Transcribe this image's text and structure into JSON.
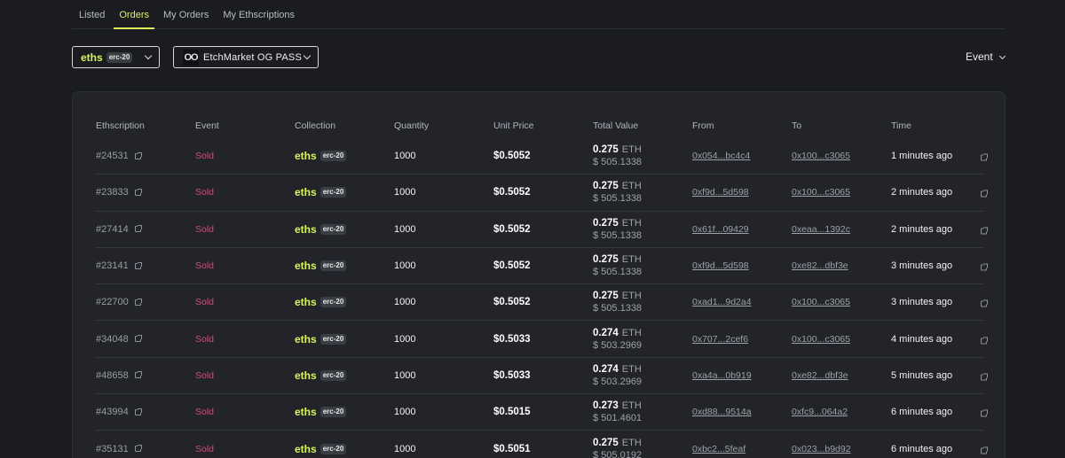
{
  "tabs": [
    "Listed",
    "Orders",
    "My Orders",
    "My Ethscriptions"
  ],
  "filters": {
    "token_name": "eths",
    "token_badge": "erc-20",
    "collection_logo": "OO",
    "collection_name": "EtchMarket OG PASS",
    "event_label": "Event"
  },
  "table": {
    "headers": {
      "ethscription": "Ethscription",
      "event": "Event",
      "collection": "Collection",
      "quantity": "Quantity",
      "unit_price": "Unit Price",
      "total_value": "Total Value",
      "from": "From",
      "to": "To",
      "time": "Time"
    },
    "rows": [
      {
        "id": "#24531",
        "event": "Sold",
        "coll": "eths",
        "badge": "erc-20",
        "qty": "1000",
        "price": "$0.5052",
        "total_eth": "0.275",
        "unit": "ETH",
        "total_usd": "$ 505.1338",
        "from": "0x054...bc4c4",
        "to": "0x100...c3065",
        "time": "1 minutes ago"
      },
      {
        "id": "#23833",
        "event": "Sold",
        "coll": "eths",
        "badge": "erc-20",
        "qty": "1000",
        "price": "$0.5052",
        "total_eth": "0.275",
        "unit": "ETH",
        "total_usd": "$ 505.1338",
        "from": "0xf9d...5d598",
        "to": "0x100...c3065",
        "time": "2 minutes ago"
      },
      {
        "id": "#27414",
        "event": "Sold",
        "coll": "eths",
        "badge": "erc-20",
        "qty": "1000",
        "price": "$0.5052",
        "total_eth": "0.275",
        "unit": "ETH",
        "total_usd": "$ 505.1338",
        "from": "0x61f...09429",
        "to": "0xeaa...1392c",
        "time": "2 minutes ago"
      },
      {
        "id": "#23141",
        "event": "Sold",
        "coll": "eths",
        "badge": "erc-20",
        "qty": "1000",
        "price": "$0.5052",
        "total_eth": "0.275",
        "unit": "ETH",
        "total_usd": "$ 505.1338",
        "from": "0xf9d...5d598",
        "to": "0xe82...dbf3e",
        "time": "3 minutes ago"
      },
      {
        "id": "#22700",
        "event": "Sold",
        "coll": "eths",
        "badge": "erc-20",
        "qty": "1000",
        "price": "$0.5052",
        "total_eth": "0.275",
        "unit": "ETH",
        "total_usd": "$ 505.1338",
        "from": "0xad1...9d2a4",
        "to": "0x100...c3065",
        "time": "3 minutes ago"
      },
      {
        "id": "#34048",
        "event": "Sold",
        "coll": "eths",
        "badge": "erc-20",
        "qty": "1000",
        "price": "$0.5033",
        "total_eth": "0.274",
        "unit": "ETH",
        "total_usd": "$ 503.2969",
        "from": "0x707...2cef6",
        "to": "0x100...c3065",
        "time": "4 minutes ago"
      },
      {
        "id": "#48658",
        "event": "Sold",
        "coll": "eths",
        "badge": "erc-20",
        "qty": "1000",
        "price": "$0.5033",
        "total_eth": "0.274",
        "unit": "ETH",
        "total_usd": "$ 503.2969",
        "from": "0xa4a...0b919",
        "to": "0xe82...dbf3e",
        "time": "5 minutes ago"
      },
      {
        "id": "#43994",
        "event": "Sold",
        "coll": "eths",
        "badge": "erc-20",
        "qty": "1000",
        "price": "$0.5015",
        "total_eth": "0.273",
        "unit": "ETH",
        "total_usd": "$ 501.4601",
        "from": "0xd88...9514a",
        "to": "0xfc9...064a2",
        "time": "6 minutes ago"
      },
      {
        "id": "#35131",
        "event": "Sold",
        "coll": "eths",
        "badge": "erc-20",
        "qty": "1000",
        "price": "$0.5051",
        "total_eth": "0.275",
        "unit": "ETH",
        "total_usd": "$ 505.0192",
        "from": "0xbc2...5feaf",
        "to": "0x023...b9d92",
        "time": "6 minutes ago"
      }
    ]
  }
}
